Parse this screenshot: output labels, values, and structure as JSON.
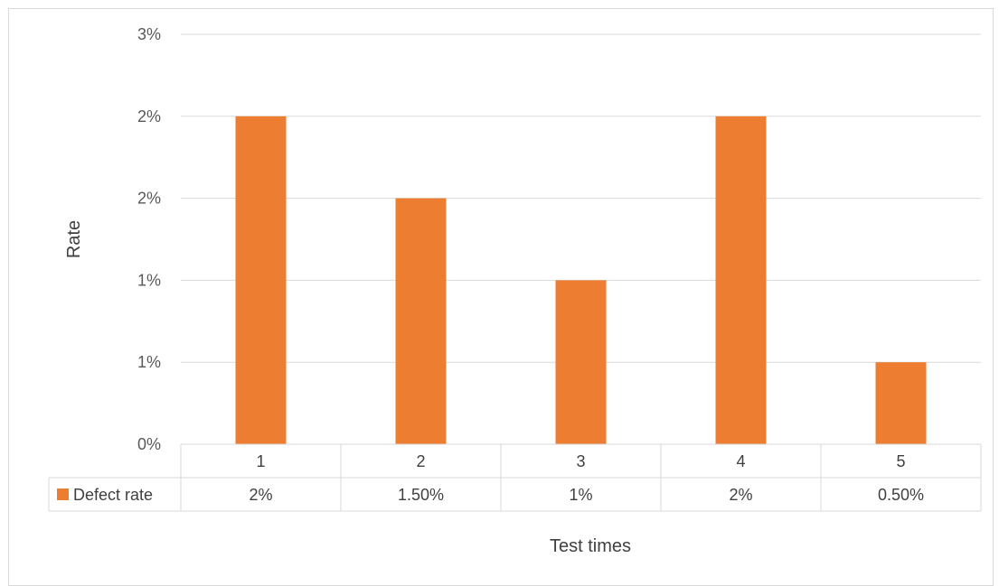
{
  "chart_data": {
    "type": "bar",
    "categories": [
      "1",
      "2",
      "3",
      "4",
      "5"
    ],
    "series": [
      {
        "name": "Defect rate",
        "values": [
          2.0,
          1.5,
          1.0,
          2.0,
          0.5
        ],
        "table_labels": [
          "2%",
          "1.50%",
          "1%",
          "2%",
          "0.50%"
        ],
        "color": "#ED7D31"
      }
    ],
    "y_ticks": [
      {
        "value": 0.0,
        "label": "0%"
      },
      {
        "value": 0.5,
        "label": "1%"
      },
      {
        "value": 1.0,
        "label": "1%"
      },
      {
        "value": 1.5,
        "label": "2%"
      },
      {
        "value": 2.0,
        "label": "2%"
      },
      {
        "value": 2.5,
        "label": "3%"
      }
    ],
    "ylim": [
      0,
      2.5
    ],
    "unit": "%",
    "xlabel": "Test times",
    "ylabel": "Rate",
    "grid": true,
    "legend": "data-table",
    "colors": {
      "bar": "#ED7D31",
      "grid": "#d9d9d9",
      "text": "#595959"
    }
  }
}
